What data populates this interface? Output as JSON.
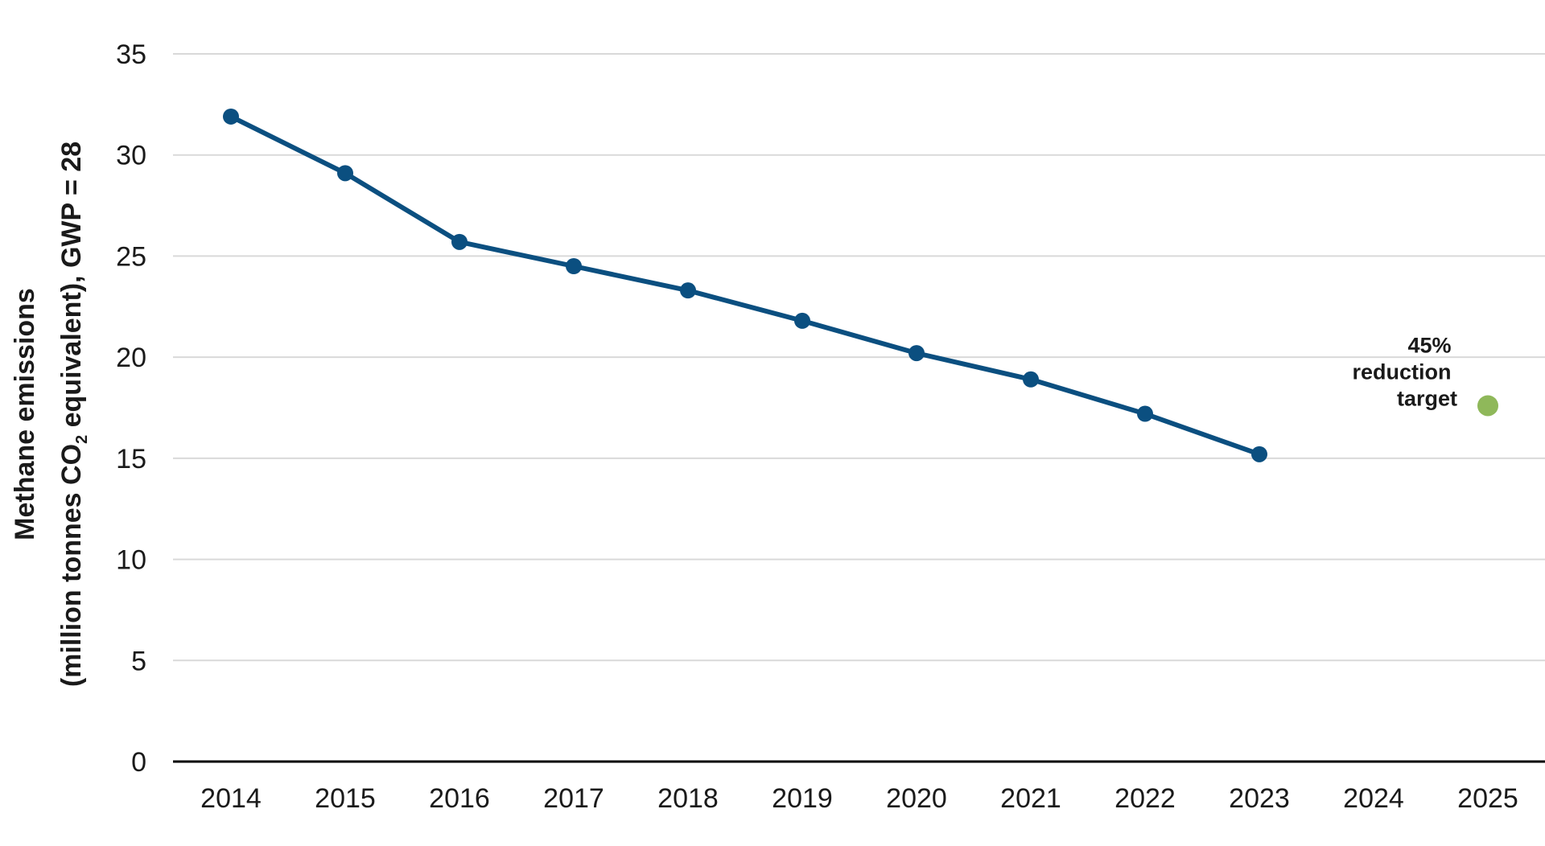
{
  "chart_data": {
    "type": "line",
    "title": "",
    "ylabel_line1": "Methane emissions",
    "ylabel_line2_pre": "(million tonnes CO",
    "ylabel_line2_sub": "2",
    "ylabel_line2_post": " equivalent),  GWP = 28",
    "ylim": [
      0,
      35
    ],
    "yticks": [
      0,
      5,
      10,
      15,
      20,
      25,
      30,
      35
    ],
    "categories": [
      "2014",
      "2015",
      "2016",
      "2017",
      "2018",
      "2019",
      "2020",
      "2021",
      "2022",
      "2023",
      "2024",
      "2025"
    ],
    "grid": true,
    "series": [
      {
        "values": [
          31.9,
          29.1,
          25.7,
          24.5,
          23.3,
          21.8,
          20.2,
          18.9,
          17.2,
          15.2,
          null,
          null
        ],
        "color": "#0b4f80"
      }
    ],
    "target": {
      "category": "2025",
      "value": 17.6,
      "color": "#8fb85a",
      "label_lines": [
        "45%",
        "reduction",
        "target"
      ]
    }
  }
}
